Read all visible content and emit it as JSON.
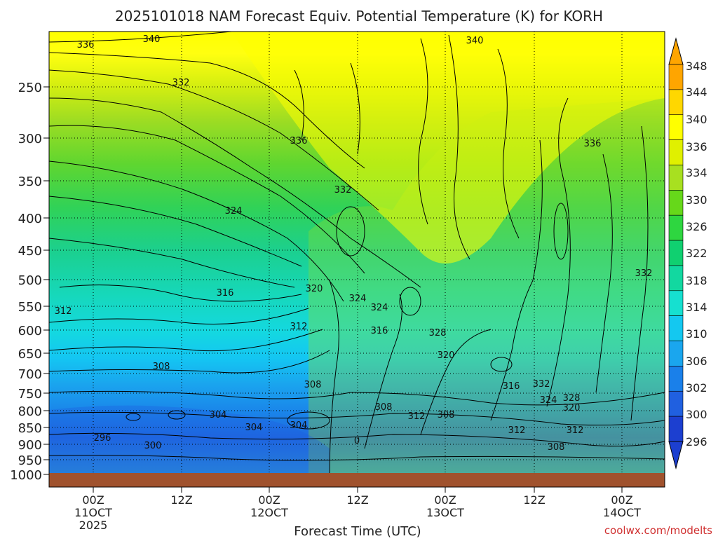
{
  "chart_data": {
    "type": "heatmap",
    "title": "2025101018 NAM Forecast Equiv. Potential Temperature (K) for KORH",
    "xlabel": "Forecast Time (UTC)",
    "ylabel": "",
    "credit": "coolwx.com/modelts",
    "y_ticks": [
      "250",
      "300",
      "350",
      "400",
      "450",
      "500",
      "550",
      "600",
      "650",
      "700",
      "750",
      "800",
      "850",
      "900",
      "950",
      "1000"
    ],
    "x_ticks": [
      {
        "hour": "00Z",
        "date": "11OCT",
        "year": "2025"
      },
      {
        "hour": "12Z",
        "date": "",
        "year": ""
      },
      {
        "hour": "00Z",
        "date": "12OCT",
        "year": ""
      },
      {
        "hour": "12Z",
        "date": "",
        "year": ""
      },
      {
        "hour": "00Z",
        "date": "13OCT",
        "year": ""
      },
      {
        "hour": "12Z",
        "date": "",
        "year": ""
      },
      {
        "hour": "00Z",
        "date": "14OCT",
        "year": ""
      }
    ],
    "colorbar": {
      "labels": [
        "348",
        "344",
        "340",
        "336",
        "334",
        "330",
        "326",
        "322",
        "318",
        "314",
        "310",
        "306",
        "302",
        "300",
        "296"
      ],
      "colors": [
        "#ffa500",
        "#ffd700",
        "#ffff00",
        "#e0f000",
        "#a8e020",
        "#66d81a",
        "#2ed640",
        "#10d070",
        "#12d8a0",
        "#16e0d0",
        "#14c8f0",
        "#1aa6ee",
        "#1a80ea",
        "#2060e0",
        "#1c3fd0"
      ]
    },
    "contour_labels": [
      "340",
      "336",
      "340",
      "332",
      "336",
      "336",
      "332",
      "324",
      "332",
      "316",
      "320",
      "324",
      "324",
      "316",
      "312",
      "328",
      "312",
      "320",
      "308",
      "308",
      "316",
      "332",
      "324",
      "328",
      "320",
      "304",
      "304",
      "304",
      "308",
      "312",
      "308",
      "312",
      "296",
      "300",
      "312",
      "308",
      "0"
    ],
    "series": [
      {
        "name": "",
        "values": [
          338,
          334,
          330,
          326,
          322,
          318,
          314,
          312,
          310,
          308,
          306,
          304,
          302,
          300,
          298,
          296
        ]
      }
    ],
    "grid": true,
    "ground_color": "#a0522d"
  }
}
